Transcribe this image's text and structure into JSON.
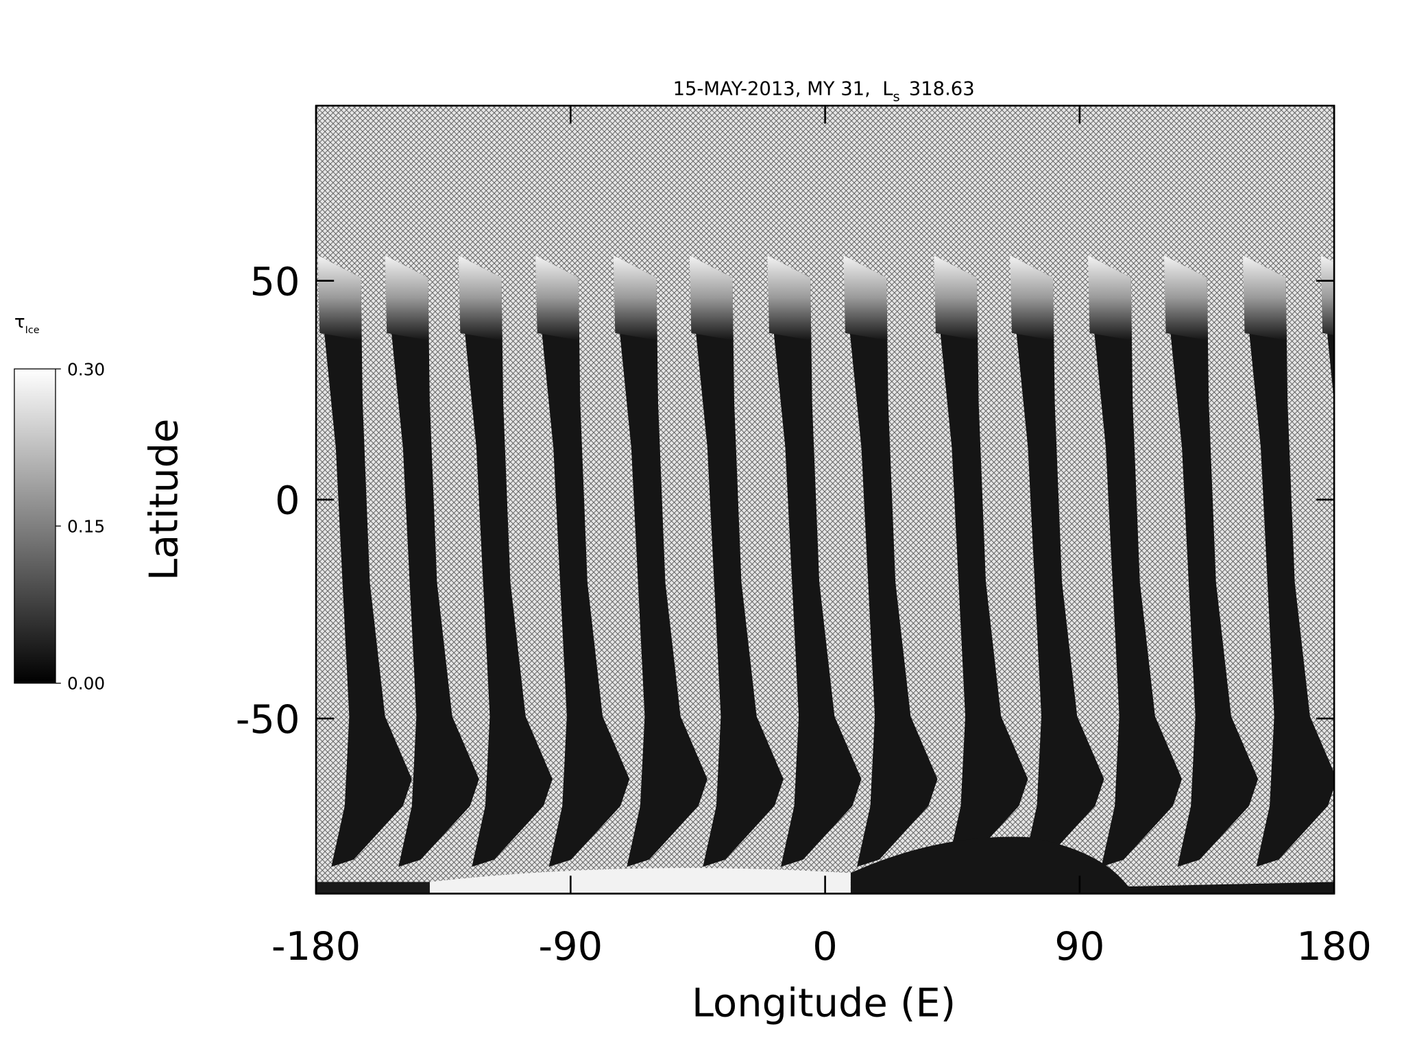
{
  "chart_data": {
    "type": "image",
    "title": "15-MAY-2013, MY 31,  L",
    "title_subscript": "s",
    "title_suffix": "318.63",
    "xlabel": "Longitude (E)",
    "ylabel": "Latitude",
    "xlim": [
      -180,
      180
    ],
    "xticks": [
      -180,
      -90,
      0,
      90,
      180
    ],
    "ylim": [
      -90,
      90
    ],
    "yticks": [
      -50,
      0,
      50
    ],
    "colorbar": {
      "label": "τ",
      "label_subscript": "Ice",
      "colormap": "gray",
      "lim": [
        0,
        0.3
      ],
      "ticks": [
        {
          "value": 0,
          "label": "0.00"
        },
        {
          "value": 0.15,
          "label": "0.15"
        },
        {
          "value": 0.3,
          "label": "0.30"
        }
      ]
    }
  }
}
